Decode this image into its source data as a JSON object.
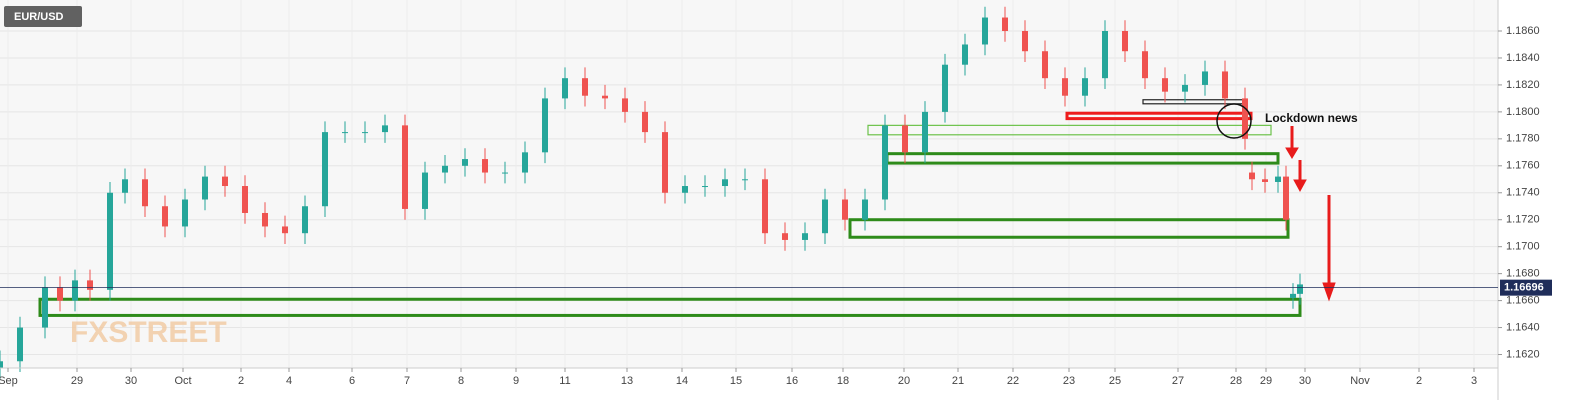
{
  "chart_data": {
    "type": "candlestick",
    "title": "EUR/USD",
    "watermark": "FXSTREET",
    "annotation": "Lockdown news",
    "up_color": "#26a69a",
    "down_color": "#ef5350",
    "grid": true,
    "xlim": [
      0,
      1498
    ],
    "ylim": [
      1.161,
      1.1883
    ],
    "xticks": [
      {
        "value": 8,
        "label": "Sep"
      },
      {
        "value": 77,
        "label": "29"
      },
      {
        "value": 131,
        "label": "30"
      },
      {
        "value": 183,
        "label": "Oct"
      },
      {
        "value": 241,
        "label": "2"
      },
      {
        "value": 289,
        "label": "4"
      },
      {
        "value": 352,
        "label": "6"
      },
      {
        "value": 407,
        "label": "7"
      },
      {
        "value": 461,
        "label": "8"
      },
      {
        "value": 516,
        "label": "9"
      },
      {
        "value": 565,
        "label": "11"
      },
      {
        "value": 627,
        "label": "13"
      },
      {
        "value": 682,
        "label": "14"
      },
      {
        "value": 736,
        "label": "15"
      },
      {
        "value": 792,
        "label": "16"
      },
      {
        "value": 843,
        "label": "18"
      },
      {
        "value": 904,
        "label": "20"
      },
      {
        "value": 958,
        "label": "21"
      },
      {
        "value": 1013,
        "label": "22"
      },
      {
        "value": 1069,
        "label": "23"
      },
      {
        "value": 1115,
        "label": "25"
      },
      {
        "value": 1178,
        "label": "27"
      },
      {
        "value": 1236,
        "label": "28"
      },
      {
        "value": 1266,
        "label": "29"
      },
      {
        "value": 1305,
        "label": "30"
      },
      {
        "value": 1360,
        "label": "Nov"
      },
      {
        "value": 1419,
        "label": "2"
      },
      {
        "value": 1474,
        "label": "3"
      }
    ],
    "yticks": [
      {
        "value": 1.162,
        "label": "1.1620"
      },
      {
        "value": 1.164,
        "label": "1.1640"
      },
      {
        "value": 1.166,
        "label": "1.1660"
      },
      {
        "value": 1.168,
        "label": "1.1680"
      },
      {
        "value": 1.17,
        "label": "1.1700"
      },
      {
        "value": 1.172,
        "label": "1.1720"
      },
      {
        "value": 1.174,
        "label": "1.1740"
      },
      {
        "value": 1.176,
        "label": "1.1760"
      },
      {
        "value": 1.178,
        "label": "1.1780"
      },
      {
        "value": 1.18,
        "label": "1.1800"
      },
      {
        "value": 1.182,
        "label": "1.1820"
      },
      {
        "value": 1.184,
        "label": "1.1840"
      },
      {
        "value": 1.186,
        "label": "1.1860"
      }
    ],
    "current_price": 1.16696,
    "x": [
      0,
      20,
      45,
      60,
      75,
      90,
      110,
      125,
      145,
      165,
      185,
      205,
      225,
      245,
      265,
      285,
      305,
      325,
      345,
      365,
      385,
      405,
      425,
      445,
      465,
      485,
      505,
      525,
      545,
      565,
      585,
      605,
      625,
      645,
      665,
      685,
      705,
      725,
      745,
      765,
      785,
      805,
      825,
      845,
      865,
      885,
      905,
      925,
      945,
      965,
      985,
      1005,
      1025,
      1045,
      1065,
      1085,
      1105,
      1125,
      1145,
      1165,
      1185,
      1205,
      1225,
      1245,
      1252,
      1265,
      1278,
      1286,
      1293,
      1300
    ],
    "open": [
      1.161,
      1.1615,
      1.164,
      1.167,
      1.166,
      1.1675,
      1.1668,
      1.174,
      1.175,
      1.173,
      1.1715,
      1.1735,
      1.1752,
      1.1745,
      1.1725,
      1.1715,
      1.171,
      1.173,
      1.1785,
      1.1785,
      1.1785,
      1.179,
      1.1728,
      1.1755,
      1.176,
      1.1765,
      1.1755,
      1.1755,
      1.177,
      1.181,
      1.1825,
      1.1812,
      1.181,
      1.18,
      1.1785,
      1.174,
      1.1745,
      1.1745,
      1.175,
      1.175,
      1.171,
      1.1705,
      1.171,
      1.1735,
      1.172,
      1.1735,
      1.179,
      1.177,
      1.18,
      1.1835,
      1.185,
      1.187,
      1.186,
      1.1845,
      1.1825,
      1.1812,
      1.1825,
      1.186,
      1.1845,
      1.1825,
      1.1815,
      1.182,
      1.183,
      1.181,
      1.1755,
      1.175,
      1.1748,
      1.1752,
      1.1662,
      1.1665
    ],
    "high": [
      1.1623,
      1.1648,
      1.1678,
      1.1678,
      1.1683,
      1.1683,
      1.1748,
      1.1758,
      1.1758,
      1.1738,
      1.1743,
      1.176,
      1.176,
      1.1753,
      1.1733,
      1.1723,
      1.1738,
      1.1793,
      1.1793,
      1.1793,
      1.1798,
      1.1798,
      1.1763,
      1.1768,
      1.1773,
      1.1773,
      1.1763,
      1.1778,
      1.1818,
      1.1833,
      1.1833,
      1.182,
      1.1818,
      1.1808,
      1.1793,
      1.1753,
      1.1753,
      1.1758,
      1.1758,
      1.1758,
      1.1718,
      1.1718,
      1.1743,
      1.1743,
      1.1743,
      1.1798,
      1.1798,
      1.1808,
      1.1843,
      1.1858,
      1.1878,
      1.1878,
      1.1868,
      1.1853,
      1.1833,
      1.1833,
      1.1868,
      1.1868,
      1.1853,
      1.1833,
      1.1828,
      1.1838,
      1.1838,
      1.1818,
      1.1763,
      1.1758,
      1.176,
      1.176,
      1.1673,
      1.168
    ],
    "low": [
      1.1602,
      1.1607,
      1.1632,
      1.1652,
      1.1652,
      1.166,
      1.166,
      1.1732,
      1.1722,
      1.1707,
      1.1707,
      1.1727,
      1.1737,
      1.1717,
      1.1707,
      1.1702,
      1.1702,
      1.1722,
      1.1777,
      1.1777,
      1.1777,
      1.172,
      1.172,
      1.1747,
      1.1752,
      1.1747,
      1.1747,
      1.1747,
      1.1762,
      1.1802,
      1.1804,
      1.1802,
      1.1792,
      1.1777,
      1.1732,
      1.1732,
      1.1737,
      1.1737,
      1.1742,
      1.1702,
      1.1697,
      1.1697,
      1.1702,
      1.1712,
      1.1712,
      1.1727,
      1.1762,
      1.1762,
      1.1792,
      1.1827,
      1.1842,
      1.1852,
      1.1837,
      1.1817,
      1.1804,
      1.1804,
      1.1817,
      1.1837,
      1.1817,
      1.1807,
      1.1807,
      1.1812,
      1.1802,
      1.1772,
      1.1742,
      1.174,
      1.174,
      1.1712,
      1.1654,
      1.1657
    ],
    "close": [
      1.1615,
      1.164,
      1.167,
      1.166,
      1.1675,
      1.1668,
      1.174,
      1.175,
      1.173,
      1.1715,
      1.1735,
      1.1752,
      1.1745,
      1.1725,
      1.1715,
      1.171,
      1.173,
      1.1785,
      1.1785,
      1.1785,
      1.179,
      1.1728,
      1.1755,
      1.176,
      1.1765,
      1.1755,
      1.1755,
      1.177,
      1.181,
      1.1825,
      1.1812,
      1.181,
      1.18,
      1.1785,
      1.174,
      1.1745,
      1.1745,
      1.175,
      1.175,
      1.171,
      1.1705,
      1.171,
      1.1735,
      1.172,
      1.1735,
      1.179,
      1.177,
      1.18,
      1.1835,
      1.185,
      1.187,
      1.186,
      1.1845,
      1.1825,
      1.1812,
      1.1825,
      1.186,
      1.1845,
      1.1825,
      1.1815,
      1.182,
      1.183,
      1.181,
      1.178,
      1.175,
      1.1748,
      1.1752,
      1.172,
      1.1665,
      1.1672
    ],
    "zones": [
      {
        "x": [
          40,
          1300
        ],
        "y": [
          1.1649,
          1.1661
        ],
        "color": "#2e8b1a"
      },
      {
        "x": [
          850,
          1288
        ],
        "y": [
          1.1707,
          1.172
        ],
        "color": "#2e8b1a"
      },
      {
        "x": [
          887,
          1278
        ],
        "y": [
          1.1762,
          1.1769
        ],
        "color": "#2e8b1a"
      },
      {
        "x": [
          868,
          1271
        ],
        "y": [
          1.1783,
          1.179
        ],
        "color": "#6cc24a"
      },
      {
        "x": [
          1067,
          1251
        ],
        "y": [
          1.1795,
          1.1799
        ],
        "color": "#ee1c1c"
      },
      {
        "x": [
          1143,
          1246
        ],
        "y": [
          1.1806,
          1.1809
        ],
        "color": "#222222"
      }
    ]
  }
}
